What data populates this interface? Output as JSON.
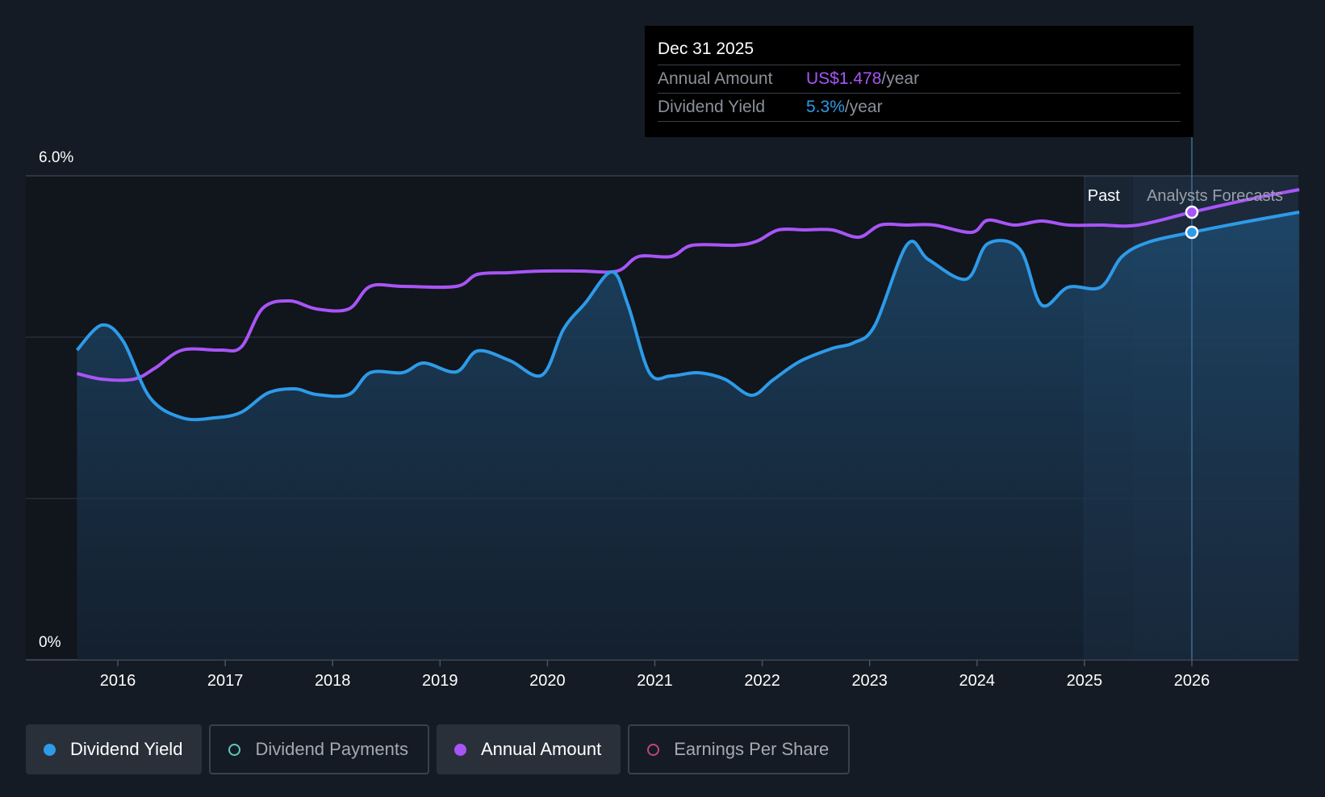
{
  "chart_data": {
    "type": "line",
    "y_axis": {
      "ticks": [
        "6.0%",
        "0%"
      ],
      "ylim": [
        0,
        6.0
      ],
      "unit": "%"
    },
    "x_axis": {
      "ticks": [
        "2016",
        "2017",
        "2018",
        "2019",
        "2020",
        "2021",
        "2022",
        "2023",
        "2024",
        "2025",
        "2026"
      ]
    },
    "regions": {
      "past_label": "Past",
      "forecast_label": "Analysts Forecasts"
    },
    "series": [
      {
        "name": "Dividend Yield",
        "color": "#2d9be8",
        "x": [
          2015.62,
          2015.85,
          2016.05,
          2016.3,
          2016.6,
          2016.9,
          2017.15,
          2017.4,
          2017.65,
          2017.85,
          2018.15,
          2018.35,
          2018.65,
          2018.85,
          2019.15,
          2019.35,
          2019.65,
          2019.95,
          2020.15,
          2020.35,
          2020.6,
          2020.75,
          2020.95,
          2021.15,
          2021.4,
          2021.65,
          2021.9,
          2022.1,
          2022.35,
          2022.65,
          2022.85,
          2023.05,
          2023.35,
          2023.55,
          2023.9,
          2024.1,
          2024.4,
          2024.6,
          2024.85,
          2025.15,
          2025.35,
          2025.6,
          2026.0,
          2026.5,
          2027.0
        ],
        "values": [
          3.84,
          4.15,
          3.95,
          3.25,
          3.0,
          3.0,
          3.07,
          3.31,
          3.36,
          3.29,
          3.29,
          3.56,
          3.56,
          3.68,
          3.57,
          3.83,
          3.71,
          3.53,
          4.1,
          4.42,
          4.81,
          4.4,
          3.56,
          3.52,
          3.56,
          3.48,
          3.28,
          3.47,
          3.7,
          3.86,
          3.93,
          4.15,
          5.15,
          4.96,
          4.72,
          5.16,
          5.09,
          4.4,
          4.62,
          4.62,
          5.0,
          5.18,
          5.3,
          5.43,
          5.55
        ]
      },
      {
        "name": "Annual Amount",
        "color": "#a855f7",
        "x": [
          2015.62,
          2015.85,
          2016.15,
          2016.35,
          2016.6,
          2016.95,
          2017.15,
          2017.35,
          2017.6,
          2017.85,
          2018.15,
          2018.35,
          2018.65,
          2019.15,
          2019.35,
          2019.65,
          2019.95,
          2020.3,
          2020.65,
          2020.85,
          2021.15,
          2021.35,
          2021.75,
          2021.95,
          2022.15,
          2022.4,
          2022.65,
          2022.9,
          2023.1,
          2023.35,
          2023.6,
          2023.95,
          2024.1,
          2024.35,
          2024.6,
          2024.85,
          2025.15,
          2025.5,
          2026.0,
          2026.5,
          2027.0
        ],
        "values": [
          3.55,
          3.48,
          3.48,
          3.62,
          3.84,
          3.84,
          3.88,
          4.36,
          4.45,
          4.35,
          4.35,
          4.63,
          4.63,
          4.63,
          4.78,
          4.8,
          4.82,
          4.82,
          4.82,
          5.0,
          5.0,
          5.14,
          5.14,
          5.19,
          5.33,
          5.33,
          5.33,
          5.24,
          5.39,
          5.39,
          5.39,
          5.3,
          5.45,
          5.39,
          5.44,
          5.39,
          5.39,
          5.39,
          5.55,
          5.7,
          5.83
        ]
      }
    ],
    "highlight": {
      "date": "Dec 31 2025",
      "annual_amount": "US$1.478",
      "dividend_yield": "5.3%",
      "annual_amount_value": 5.55,
      "dividend_yield_value": 5.3,
      "x": 2026.0
    }
  },
  "tooltip": {
    "date": "Dec 31 2025",
    "annual_amount_label": "Annual Amount",
    "annual_amount_value": "US$1.478",
    "annual_amount_unit": "/year",
    "dividend_yield_label": "Dividend Yield",
    "dividend_yield_value": "5.3%",
    "dividend_yield_unit": "/year"
  },
  "legend": [
    {
      "label": "Dividend Yield",
      "color": "#2d9be8",
      "active": true
    },
    {
      "label": "Dividend Payments",
      "color": "#5ec8bc",
      "active": false
    },
    {
      "label": "Annual Amount",
      "color": "#a855f7",
      "active": true
    },
    {
      "label": "Earnings Per Share",
      "color": "#c0457f",
      "active": false
    }
  ]
}
